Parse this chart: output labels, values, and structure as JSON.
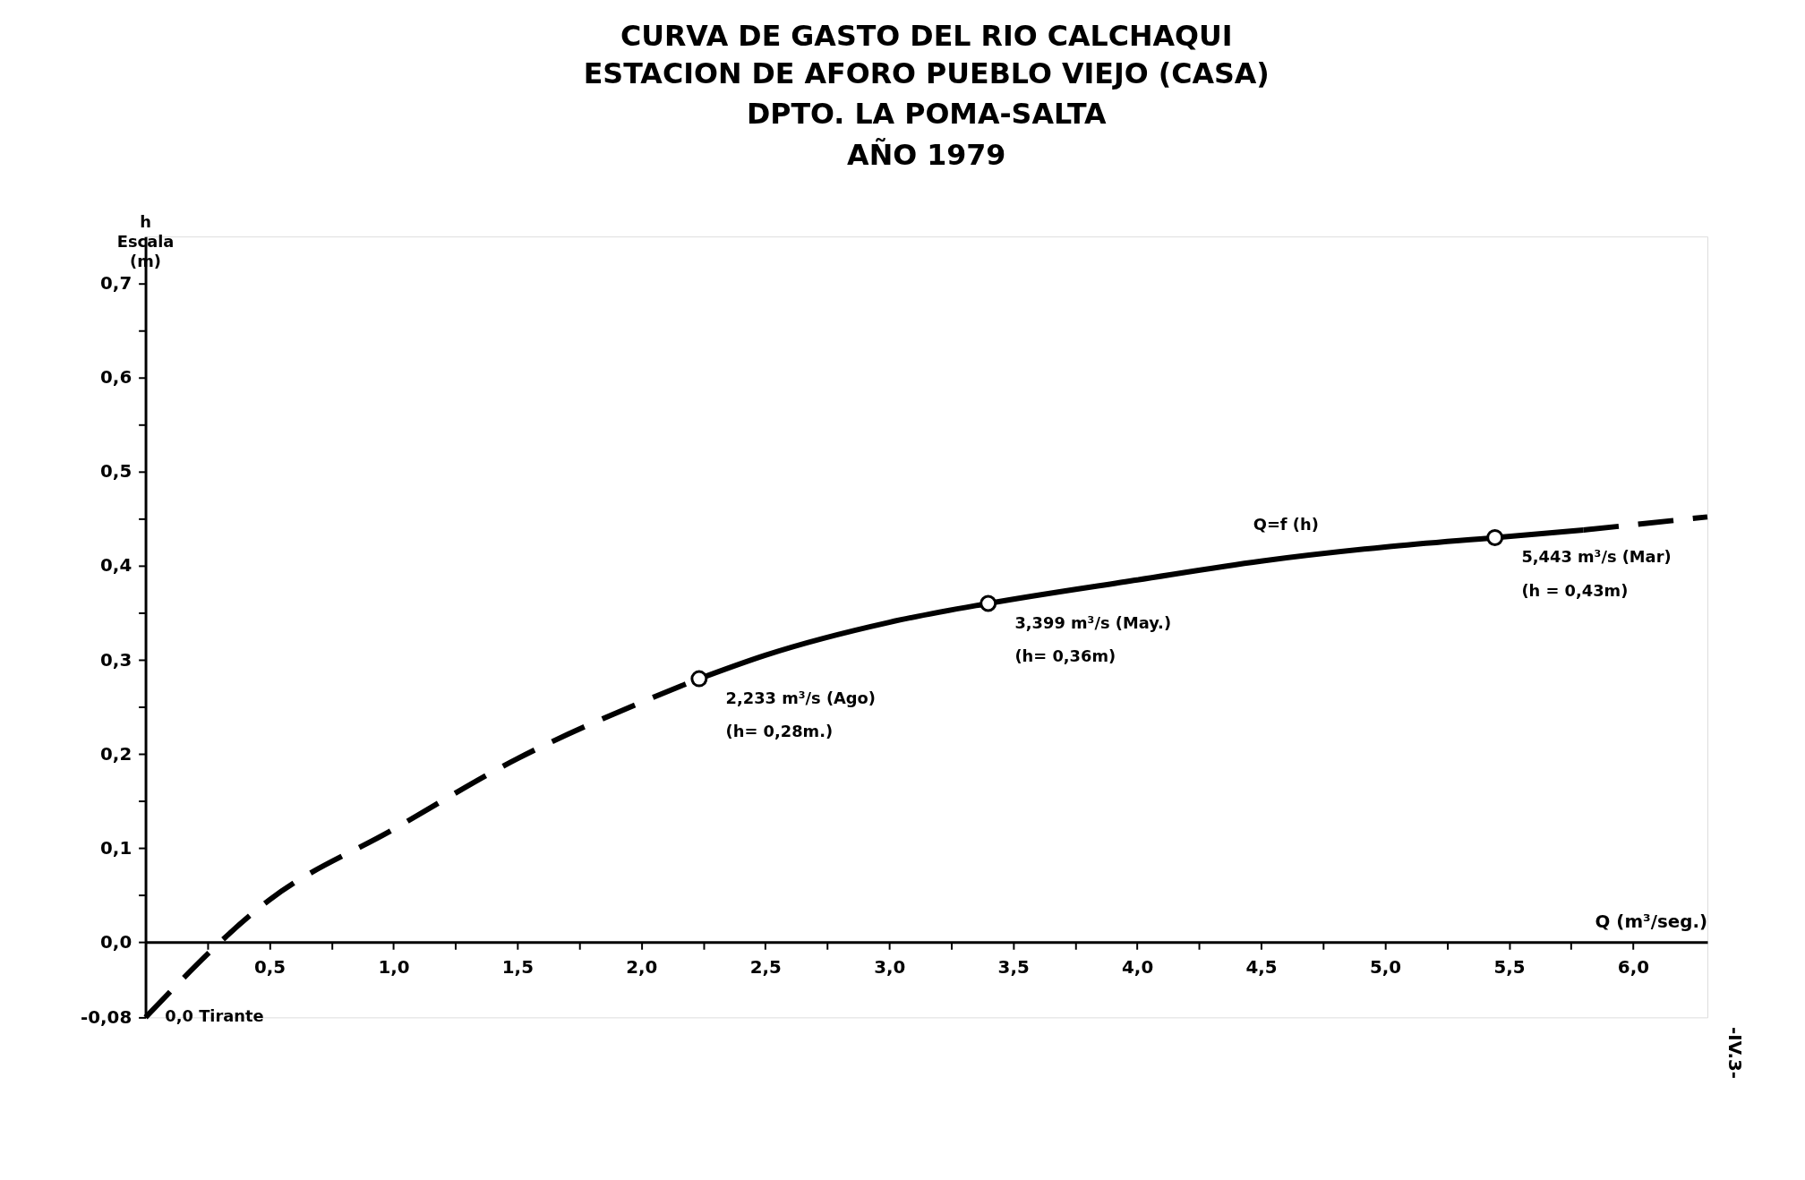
{
  "chart_data": {
    "type": "line",
    "title": "CURVA DE GASTO DEL RIO CALCHAQUI",
    "subtitle": "ESTACION DE AFORO PUEBLO VIEJO (CASA)\nDPTO. LA POMA-SALTA\nAÑO 1979",
    "xlabel": "Q (m³/seg.)",
    "ylabel": "h\nEscala\n(m)",
    "xlim": [
      0,
      6.3
    ],
    "ylim": [
      -0.08,
      0.75
    ],
    "xticks": [
      {
        "value": 0.25,
        "label": null
      },
      {
        "value": 0.5,
        "label": "0,5"
      },
      {
        "value": 0.75,
        "label": null
      },
      {
        "value": 1.0,
        "label": "1,0"
      },
      {
        "value": 1.25,
        "label": null
      },
      {
        "value": 1.5,
        "label": "1,5"
      },
      {
        "value": 1.75,
        "label": null
      },
      {
        "value": 2.0,
        "label": "2,0"
      },
      {
        "value": 2.25,
        "label": null
      },
      {
        "value": 2.5,
        "label": "2,5"
      },
      {
        "value": 2.75,
        "label": null
      },
      {
        "value": 3.0,
        "label": "3,0"
      },
      {
        "value": 3.25,
        "label": null
      },
      {
        "value": 3.5,
        "label": "3,5"
      },
      {
        "value": 3.75,
        "label": null
      },
      {
        "value": 4.0,
        "label": "4,0"
      },
      {
        "value": 4.25,
        "label": null
      },
      {
        "value": 4.5,
        "label": "4,5"
      },
      {
        "value": 4.75,
        "label": null
      },
      {
        "value": 5.0,
        "label": "5,0"
      },
      {
        "value": 5.25,
        "label": null
      },
      {
        "value": 5.5,
        "label": "5,5"
      },
      {
        "value": 5.75,
        "label": null
      },
      {
        "value": 6.0,
        "label": "6,0"
      }
    ],
    "yticks": [
      {
        "value": -0.08,
        "label": "-0,08"
      },
      {
        "value": 0.0,
        "label": "0,0"
      },
      {
        "value": 0.05,
        "label": null
      },
      {
        "value": 0.1,
        "label": "0,1"
      },
      {
        "value": 0.15,
        "label": null
      },
      {
        "value": 0.2,
        "label": "0,2"
      },
      {
        "value": 0.25,
        "label": null
      },
      {
        "value": 0.3,
        "label": "0,3"
      },
      {
        "value": 0.35,
        "label": null
      },
      {
        "value": 0.4,
        "label": "0,4"
      },
      {
        "value": 0.45,
        "label": null
      },
      {
        "value": 0.5,
        "label": "0,5"
      },
      {
        "value": 0.55,
        "label": null
      },
      {
        "value": 0.6,
        "label": "0,6"
      },
      {
        "value": 0.65,
        "label": null
      },
      {
        "value": 0.7,
        "label": "0,7"
      }
    ],
    "grid": false,
    "series": [
      {
        "line_style": "dashed",
        "marker": "none",
        "color": "#000000",
        "x": [
          0,
          0.5,
          1.0,
          1.5,
          2.0,
          2.233
        ],
        "values": [
          -0.08,
          0.045,
          0.12,
          0.195,
          0.255,
          0.28
        ]
      },
      {
        "line_style": "solid",
        "marker": "none",
        "color": "#000000",
        "x": [
          2.233,
          2.5,
          3.0,
          3.399,
          4.0,
          4.5,
          5.0,
          5.443,
          5.8
        ],
        "values": [
          0.28,
          0.305,
          0.34,
          0.36,
          0.385,
          0.405,
          0.42,
          0.43,
          0.438
        ]
      },
      {
        "line_style": "dashed",
        "marker": "none",
        "color": "#000000",
        "x": [
          5.8,
          6.3
        ],
        "values": [
          0.438,
          0.452
        ]
      },
      {
        "type": "scatter",
        "marker": "circle",
        "color": "#000000",
        "x": [
          2.233,
          3.399,
          5.443
        ],
        "values": [
          0.28,
          0.36,
          0.43
        ]
      }
    ],
    "annotations": [
      {
        "text": "2,233 m³/s (Ago)\n(h= 0,28m.)",
        "x": 2.233,
        "y": 0.28
      },
      {
        "text": "3,399 m³/s (May.)\n(h= 0,36m)",
        "x": 3.399,
        "y": 0.36
      },
      {
        "text": "5,443 m³/s (Mar)\n(h = 0,43m)",
        "x": 5.443,
        "y": 0.43
      },
      {
        "text": "Q=f (h)",
        "x": 4.6,
        "y": 0.41
      },
      {
        "text": "0,0 Tirante",
        "x": 0,
        "y": -0.08
      },
      "-IV.3-"
    ]
  }
}
